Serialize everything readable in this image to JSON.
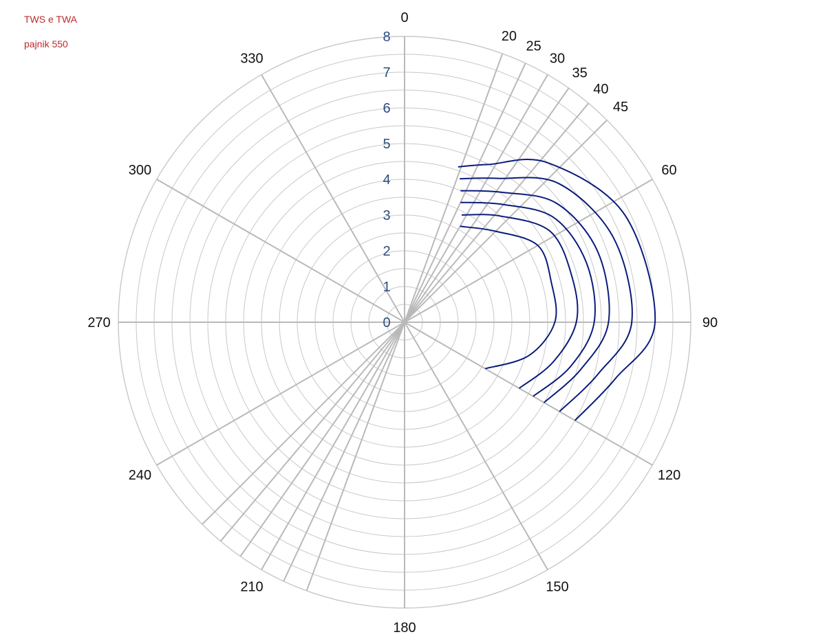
{
  "legend": {
    "line1": "TWS e TWA",
    "line2": "pajnik 550"
  },
  "colors": {
    "series": "#0a1a7a",
    "grid": "#c8c8c8",
    "spoke": "#b9b9b9",
    "radial_label": "#2b4c7e",
    "legend_text": "#c0282d"
  },
  "chart_data": {
    "type": "polar-line",
    "angular_axis": {
      "direction": "clockwise",
      "zero": "top",
      "tick_labels": [
        "0",
        "20",
        "25",
        "30",
        "35",
        "40",
        "45",
        "60",
        "90",
        "120",
        "150",
        "180",
        "210",
        "240",
        "270",
        "300",
        "330"
      ],
      "tick_angles": [
        0,
        20,
        25,
        30,
        35,
        40,
        45,
        60,
        90,
        120,
        150,
        180,
        210,
        240,
        270,
        300,
        330
      ],
      "unlabeled_spokes": [
        200,
        205,
        215,
        220,
        225
      ]
    },
    "radial_axis": {
      "range": [
        0,
        8
      ],
      "tick_labels": [
        "0",
        "1",
        "2",
        "3",
        "4",
        "5",
        "6",
        "7",
        "8"
      ],
      "gridline_count": 16
    },
    "series": [
      {
        "angles": [
          30,
          45,
          60,
          75,
          90,
          105,
          120
        ],
        "r": [
          3.1,
          3.6,
          4.3,
          4.25,
          4.2,
          3.6,
          2.6
        ]
      },
      {
        "angles": [
          28,
          42,
          58,
          75,
          90,
          105,
          120
        ],
        "r": [
          3.4,
          4.0,
          4.8,
          4.85,
          4.8,
          4.3,
          3.7
        ]
      },
      {
        "angles": [
          25,
          40,
          55,
          72,
          90,
          105,
          120
        ],
        "r": [
          3.7,
          4.3,
          5.1,
          5.35,
          5.3,
          4.8,
          4.15
        ]
      },
      {
        "angles": [
          23,
          37,
          52,
          70,
          90,
          105,
          120
        ],
        "r": [
          4.0,
          4.55,
          5.4,
          5.75,
          5.7,
          5.1,
          4.5
        ]
      },
      {
        "angles": [
          21,
          33,
          48,
          68,
          90,
          105,
          120
        ],
        "r": [
          4.3,
          4.8,
          5.8,
          6.3,
          6.35,
          5.6,
          5.0
        ]
      },
      {
        "angles": [
          19,
          28,
          42,
          64,
          90,
          105,
          120
        ],
        "r": [
          4.6,
          5.0,
          6.0,
          6.85,
          7.0,
          6.1,
          5.5
        ]
      }
    ]
  }
}
